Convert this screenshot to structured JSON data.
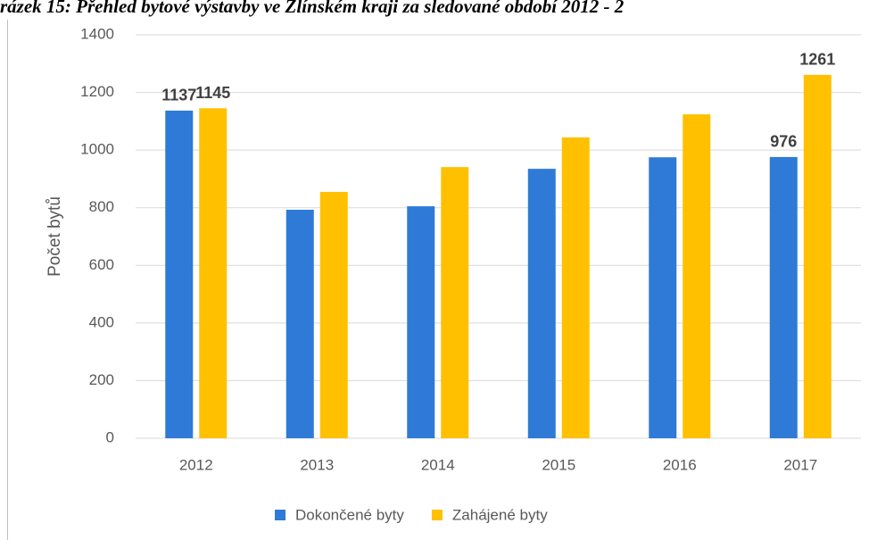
{
  "chart_data": {
    "type": "bar",
    "title": "rázek 15: Přehled bytové výstavby ve Zlínském kraji za sledované období 2012 - 2",
    "y_label": "Počet bytů",
    "categories": [
      "2012",
      "2013",
      "2014",
      "2015",
      "2016",
      "2017"
    ],
    "series": [
      {
        "name": "Dokončené byty",
        "color": "#2e7ad6",
        "values": [
          1137,
          793,
          805,
          935,
          975,
          976
        ],
        "value_labels": [
          "1137",
          null,
          null,
          null,
          null,
          "976"
        ]
      },
      {
        "name": "Zahájené byty",
        "color": "#ffc000",
        "values": [
          1145,
          855,
          941,
          1044,
          1124,
          1261
        ],
        "value_labels": [
          "1145",
          null,
          null,
          null,
          null,
          "1261"
        ]
      }
    ],
    "ylim": [
      0,
      1400
    ],
    "yticks": [
      0,
      200,
      400,
      600,
      800,
      1000,
      1200,
      1400
    ],
    "grid": true,
    "legend": "bottom"
  }
}
